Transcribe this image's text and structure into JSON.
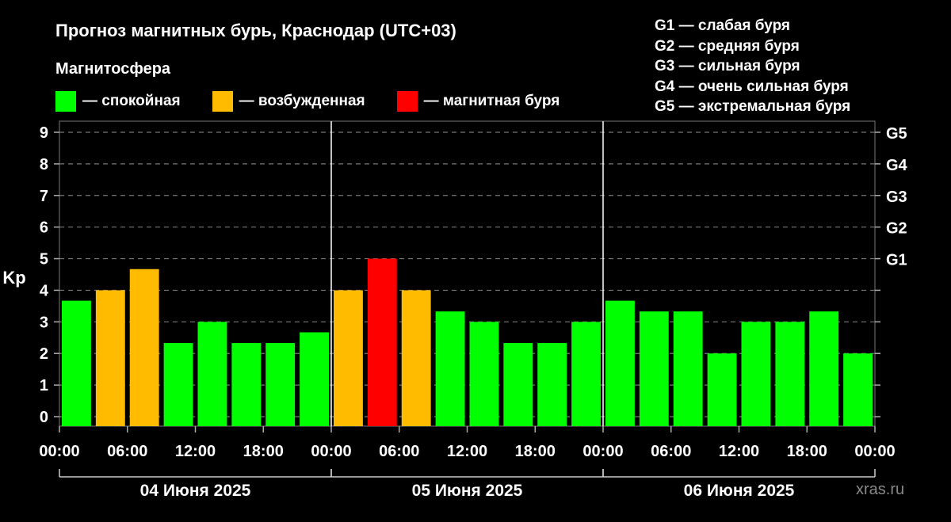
{
  "header": {
    "title": "Прогноз магнитных бурь, Краснодар (UTC+03)",
    "subtitle": "Магнитосфера"
  },
  "legend": [
    {
      "label": "— спокойная",
      "color": "#00ff00"
    },
    {
      "label": "— возбужденная",
      "color": "#ffbb00"
    },
    {
      "label": "— магнитная буря",
      "color": "#ff0000"
    }
  ],
  "g_legend": [
    "G1 — слабая буря",
    "G2 — средняя буря",
    "G3 — сильная буря",
    "G4 — очень сильная буря",
    "G5 — экстремальная буря"
  ],
  "watermark": "xras.ru",
  "colors": {
    "calm": "#00ff00",
    "active": "#ffbb00",
    "storm": "#ff0000"
  },
  "chart_data": {
    "type": "bar",
    "ylabel": "Kp",
    "ylim": [
      0,
      9
    ],
    "yticks": [
      "0",
      "1",
      "2",
      "3",
      "4",
      "5",
      "6",
      "7",
      "8",
      "9"
    ],
    "right_ticks": [
      {
        "value": 5,
        "label": "G1"
      },
      {
        "value": 6,
        "label": "G2"
      },
      {
        "value": 7,
        "label": "G3"
      },
      {
        "value": 8,
        "label": "G4"
      },
      {
        "value": 9,
        "label": "G5"
      }
    ],
    "grid": true,
    "xtick_labels": [
      "00:00",
      "06:00",
      "12:00",
      "18:00",
      "00:00",
      "06:00",
      "12:00",
      "18:00",
      "00:00",
      "06:00",
      "12:00",
      "18:00",
      "00:00"
    ],
    "days": [
      "04 Июня 2025",
      "05 Июня 2025",
      "06 Июня 2025"
    ],
    "values": [
      3.67,
      4.0,
      4.67,
      2.33,
      3.0,
      2.33,
      2.33,
      2.67,
      4.0,
      5.0,
      4.0,
      3.33,
      3.0,
      2.33,
      2.33,
      3.0,
      3.67,
      3.33,
      3.33,
      2.0,
      3.0,
      3.0,
      3.33,
      2.0
    ],
    "levels": [
      "calm",
      "active",
      "active",
      "calm",
      "calm",
      "calm",
      "calm",
      "calm",
      "active",
      "storm",
      "active",
      "calm",
      "calm",
      "calm",
      "calm",
      "calm",
      "calm",
      "calm",
      "calm",
      "calm",
      "calm",
      "calm",
      "calm",
      "calm"
    ]
  }
}
